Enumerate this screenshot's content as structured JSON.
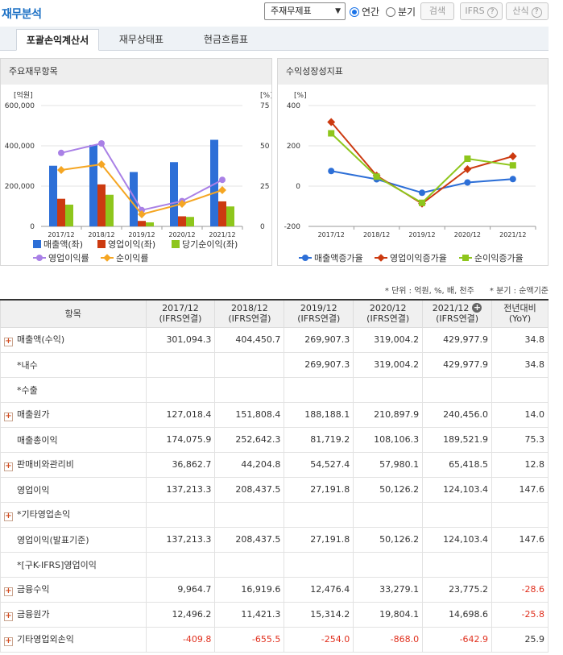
{
  "header": {
    "title": "재무분석",
    "select_value": "주재무제표",
    "radio_annual": "연간",
    "radio_quarter": "분기",
    "search_button": "검색",
    "ifrs_button": "IFRS",
    "calc_button": "산식",
    "help_glyph": "?"
  },
  "tabs": [
    {
      "label": "포괄손익계산서",
      "active": true
    },
    {
      "label": "재무상태표",
      "active": false
    },
    {
      "label": "현금흐름표",
      "active": false
    }
  ],
  "left_panel": {
    "title": "주요재무항목"
  },
  "right_panel": {
    "title": "수익성장성지표"
  },
  "chart_data": [
    {
      "type": "bar",
      "categories": [
        "2017/12",
        "2018/12",
        "2019/12",
        "2020/12",
        "2021/12"
      ],
      "left_axis": {
        "unit": "[억원]",
        "ticks": [
          "600,000",
          "400,000",
          "200,000",
          "0"
        ],
        "ylim": [
          0,
          600000
        ]
      },
      "right_axis": {
        "unit": "[%]",
        "ticks": [
          "75",
          "50",
          "25",
          "0"
        ],
        "ylim": [
          0,
          75
        ]
      },
      "series": [
        {
          "name": "매출액(좌)",
          "kind": "bar",
          "axis": "left",
          "color": "#2d6fd7",
          "values": [
            301094.3,
            404450.7,
            269907.3,
            319004.2,
            429977.9
          ]
        },
        {
          "name": "영업이익(좌)",
          "kind": "bar",
          "axis": "left",
          "color": "#cc3a10",
          "values": [
            137213.3,
            208437.5,
            27191.8,
            50126.2,
            124103.4
          ]
        },
        {
          "name": "당기순이익(좌)",
          "kind": "bar",
          "axis": "left",
          "color": "#8ec61c",
          "values": [
            108000,
            157000,
            20000,
            47000,
            99000
          ]
        },
        {
          "name": "영업이익률",
          "kind": "line",
          "axis": "right",
          "color": "#a980e6",
          "marker": "circle",
          "values": [
            45.6,
            51.5,
            10.1,
            15.7,
            28.9
          ]
        },
        {
          "name": "순이익률",
          "kind": "line",
          "axis": "right",
          "color": "#f5a623",
          "marker": "diamond",
          "values": [
            35.0,
            38.5,
            7.5,
            14.0,
            22.5
          ]
        }
      ],
      "grid": true,
      "legend": "bottom"
    },
    {
      "type": "line",
      "categories": [
        "2017/12",
        "2018/12",
        "2019/12",
        "2020/12",
        "2021/12"
      ],
      "left_axis": {
        "unit": "[%]",
        "ticks": [
          "400",
          "200",
          "0",
          "-200"
        ],
        "ylim": [
          -200,
          400
        ]
      },
      "series": [
        {
          "name": "매출액증가율",
          "color": "#2d6fd7",
          "marker": "circle",
          "values": [
            75,
            34,
            -33,
            18,
            35
          ]
        },
        {
          "name": "영업이익증가율",
          "color": "#cc3a10",
          "marker": "diamond",
          "values": [
            318,
            52,
            -87,
            84,
            148
          ]
        },
        {
          "name": "순이익증가율",
          "color": "#8ec61c",
          "marker": "square",
          "values": [
            262,
            47,
            -83,
            136,
            103
          ]
        }
      ],
      "grid": true,
      "legend": "bottom"
    }
  ],
  "units_note": "* 단위 : 억원, %, 배, 천주",
  "quarter_note": "* 분기 : 순액기준",
  "table": {
    "headers": [
      {
        "label": "항목"
      },
      {
        "label": "2017/12",
        "sub": "(IFRS연결)"
      },
      {
        "label": "2018/12",
        "sub": "(IFRS연결)"
      },
      {
        "label": "2019/12",
        "sub": "(IFRS연결)"
      },
      {
        "label": "2020/12",
        "sub": "(IFRS연결)"
      },
      {
        "label": "2021/12",
        "sub": "(IFRS연결)",
        "add": "+"
      },
      {
        "label": "전년대비",
        "sub": "(YoY)"
      }
    ],
    "rows": [
      {
        "label": "매출액(수익)",
        "expand": true,
        "cells": [
          "301,094.3",
          "404,450.7",
          "269,907.3",
          "319,004.2",
          "429,977.9",
          "34.8"
        ]
      },
      {
        "label": "*내수",
        "expand": false,
        "cells": [
          "",
          "",
          "269,907.3",
          "319,004.2",
          "429,977.9",
          "34.8"
        ]
      },
      {
        "label": "*수출",
        "expand": false,
        "cells": [
          "",
          "",
          "",
          "",
          "",
          ""
        ]
      },
      {
        "label": "매출원가",
        "expand": true,
        "cells": [
          "127,018.4",
          "151,808.4",
          "188,188.1",
          "210,897.9",
          "240,456.0",
          "14.0"
        ]
      },
      {
        "label": "매출총이익",
        "expand": false,
        "cells": [
          "174,075.9",
          "252,642.3",
          "81,719.2",
          "108,106.3",
          "189,521.9",
          "75.3"
        ]
      },
      {
        "label": "판매비와관리비",
        "expand": true,
        "cells": [
          "36,862.7",
          "44,204.8",
          "54,527.4",
          "57,980.1",
          "65,418.5",
          "12.8"
        ]
      },
      {
        "label": "영업이익",
        "expand": false,
        "cells": [
          "137,213.3",
          "208,437.5",
          "27,191.8",
          "50,126.2",
          "124,103.4",
          "147.6"
        ]
      },
      {
        "label": "*기타영업손익",
        "expand": true,
        "cells": [
          "",
          "",
          "",
          "",
          "",
          ""
        ]
      },
      {
        "label": "영업이익(발표기준)",
        "expand": false,
        "cells": [
          "137,213.3",
          "208,437.5",
          "27,191.8",
          "50,126.2",
          "124,103.4",
          "147.6"
        ]
      },
      {
        "label": "*[구K-IFRS]영업이익",
        "expand": false,
        "cells": [
          "",
          "",
          "",
          "",
          "",
          ""
        ]
      },
      {
        "label": "금융수익",
        "expand": true,
        "cells": [
          "9,964.7",
          "16,919.6",
          "12,476.4",
          "33,279.1",
          "23,775.2",
          "-28.6"
        ]
      },
      {
        "label": "금융원가",
        "expand": true,
        "cells": [
          "12,496.2",
          "11,421.3",
          "15,314.2",
          "19,804.1",
          "14,698.6",
          "-25.8"
        ]
      },
      {
        "label": "기타영업외손익",
        "expand": true,
        "cells": [
          "-409.8",
          "-655.5",
          "-254.0",
          "-868.0",
          "-642.9",
          "25.9"
        ]
      }
    ]
  }
}
